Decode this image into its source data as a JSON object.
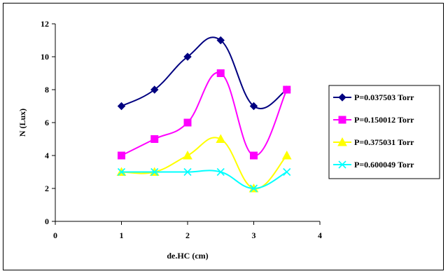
{
  "chart_data": {
    "type": "line",
    "title": "",
    "xlabel": "de.HC (cm)",
    "ylabel": "N (Lux)",
    "xlim": [
      0,
      4
    ],
    "ylim": [
      0,
      12
    ],
    "xticks": [
      0,
      1,
      2,
      3,
      4
    ],
    "yticks": [
      0,
      2,
      4,
      6,
      8,
      10,
      12
    ],
    "grid": false,
    "legend_position": "right",
    "x": [
      1,
      1.5,
      2,
      2.5,
      3,
      3.5
    ],
    "series": [
      {
        "name": "P=0.037503 Torr",
        "values": [
          7,
          8,
          10,
          11,
          7,
          8
        ],
        "color": "#000080",
        "marker": "diamond"
      },
      {
        "name": "P=0.150012 Torr",
        "values": [
          4,
          5,
          6,
          9,
          4,
          8
        ],
        "color": "#FF00FF",
        "marker": "square"
      },
      {
        "name": "P=0.375031 Torr",
        "values": [
          3,
          3,
          4,
          5,
          2,
          4
        ],
        "color": "#FFFF00",
        "marker": "triangle"
      },
      {
        "name": "P=0.600049 Torr",
        "values": [
          3,
          3,
          3,
          3,
          2,
          3
        ],
        "color": "#00FFFF",
        "marker": "x"
      }
    ]
  }
}
